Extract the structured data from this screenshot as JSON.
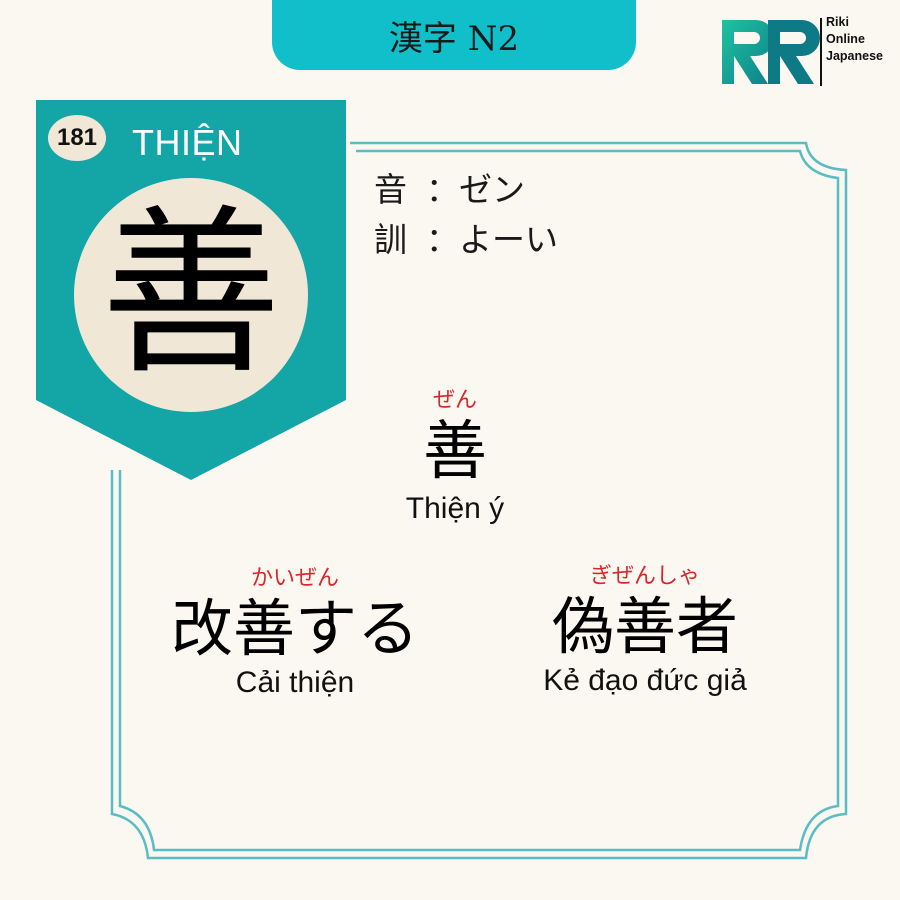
{
  "header": {
    "title": "漢字 N2"
  },
  "brand": {
    "line1": "Riki",
    "line2": "Online",
    "line3": "Japanese"
  },
  "card": {
    "number": "181",
    "han_viet": "THIỆN",
    "kanji": "善",
    "on_label": "音",
    "on_reading": "：ゼン",
    "kun_label": "訓",
    "kun_reading": "：よーい"
  },
  "vocab": [
    {
      "furigana": "ぜん",
      "word": "善",
      "meaning": "Thiện ý"
    },
    {
      "furigana": "かいぜん",
      "word": "改善する",
      "meaning": "Cải thiện"
    },
    {
      "furigana": "ぎぜんしゃ",
      "word": "偽善者",
      "meaning": "Kẻ đạo đức giả"
    }
  ],
  "colors": {
    "teal": "#11bfcb",
    "dark_teal": "#14a5a6",
    "frame": "#5bbdc4",
    "cream": "#f1e7d6",
    "furigana": "#d9262b",
    "background": "#fbf8f2"
  }
}
